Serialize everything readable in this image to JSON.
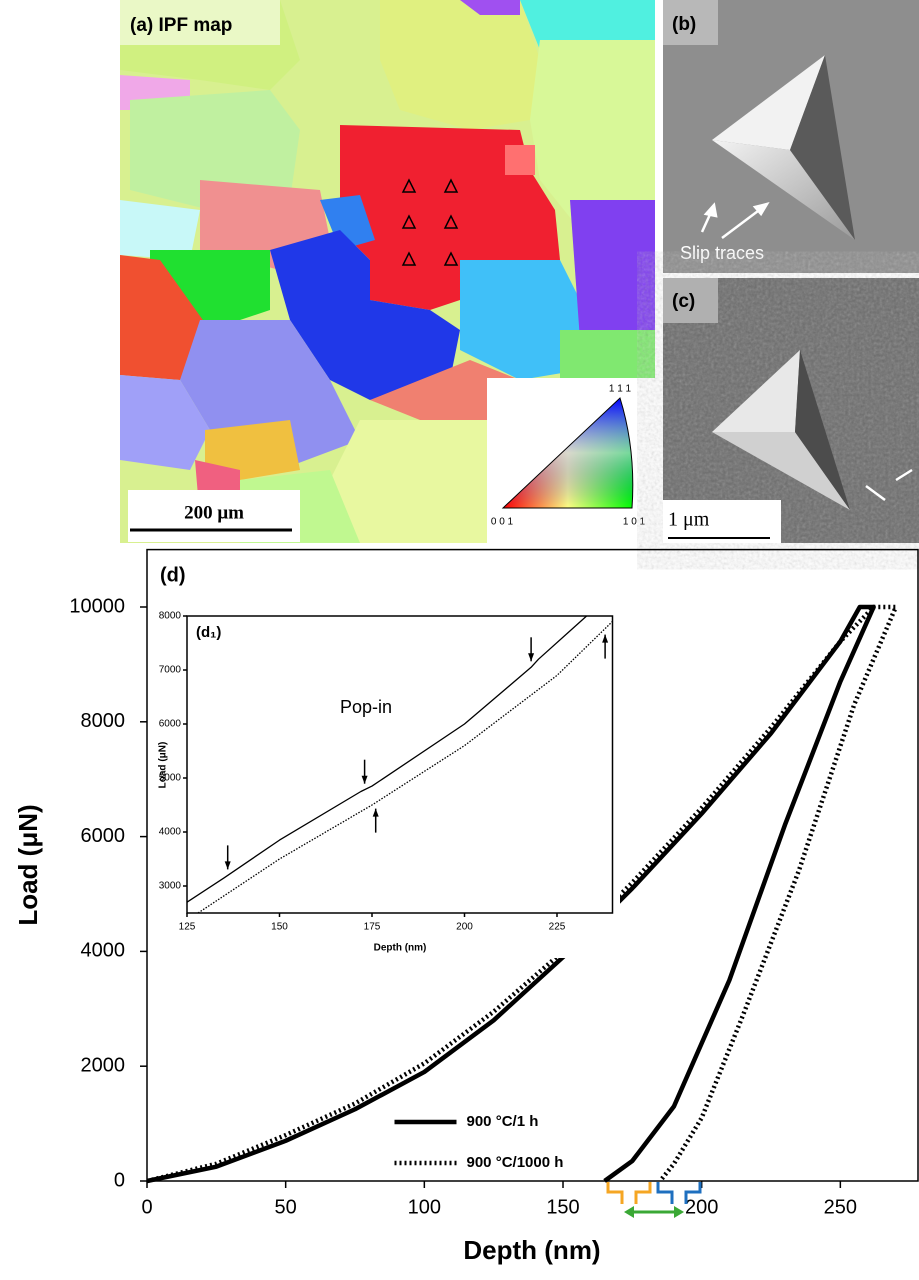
{
  "panels": {
    "a": {
      "label": "(a) IPF map",
      "scale_bar": "200 μm",
      "triangle_labels": [
        "1 1 1",
        "0 0 1",
        "1 0 1"
      ]
    },
    "b": {
      "label": "(b)",
      "annotation": "Slip traces"
    },
    "c": {
      "label": "(c)",
      "scale_bar": "1 μm"
    }
  },
  "chart_data": [
    {
      "type": "line",
      "label": "(d)",
      "x_label": "Depth (nm)",
      "y_label": "Load (μN)",
      "xlim": [
        0,
        278
      ],
      "xticks": [
        0,
        50,
        100,
        150,
        200,
        250
      ],
      "ylim": [
        0,
        11000
      ],
      "yticks": [
        0,
        2000,
        4000,
        6000,
        8000,
        10000
      ],
      "legend": "lower center",
      "series": [
        {
          "name": "900 °C/1 h",
          "style": "solid",
          "color": "#000000",
          "x": [
            0,
            25,
            50,
            75,
            100,
            125,
            150,
            175,
            200,
            225,
            250,
            257,
            262,
            250,
            230,
            210,
            190,
            175,
            165
          ],
          "values": [
            0,
            250,
            700,
            1250,
            1900,
            2800,
            3900,
            5100,
            6400,
            7800,
            9400,
            10000,
            10000,
            8700,
            6200,
            3500,
            1300,
            350,
            0
          ]
        },
        {
          "name": "900 °C/1000 h",
          "style": "dotted",
          "color": "#000000",
          "x": [
            0,
            25,
            50,
            75,
            100,
            125,
            150,
            175,
            200,
            225,
            250,
            262,
            270,
            255,
            235,
            215,
            200,
            190,
            185
          ],
          "values": [
            0,
            300,
            800,
            1350,
            2050,
            2950,
            4000,
            5200,
            6500,
            7900,
            9400,
            10000,
            10000,
            8300,
            5400,
            2900,
            1100,
            300,
            0
          ]
        }
      ]
    },
    {
      "type": "line",
      "label": "(d₁)",
      "x_label": "Depth (nm)",
      "y_label": "Load (μN)",
      "annotation": "Pop-in",
      "xlim": [
        125,
        240
      ],
      "xticks": [
        125,
        150,
        175,
        200,
        225
      ],
      "ylim": [
        2500,
        8000
      ],
      "yticks": [
        3000,
        4000,
        5000,
        6000,
        7000,
        8000
      ],
      "series": [
        {
          "style": "solid",
          "color": "#000000",
          "x": [
            125,
            135,
            150,
            172,
            175,
            200,
            218,
            220,
            233
          ],
          "values": [
            2700,
            3150,
            3850,
            4750,
            4850,
            6000,
            7050,
            7200,
            8000
          ],
          "popin_depths": [
            136,
            173,
            218
          ]
        },
        {
          "style": "dotted",
          "color": "#000000",
          "x": [
            128,
            150,
            175,
            200,
            225,
            240
          ],
          "values": [
            2500,
            3500,
            4500,
            5600,
            6900,
            7900
          ],
          "popin_depths": [
            176,
            238
          ]
        }
      ]
    }
  ]
}
